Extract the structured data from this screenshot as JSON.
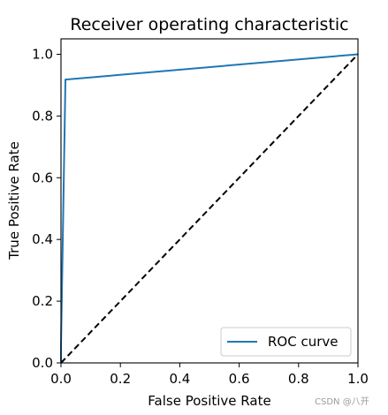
{
  "chart_data": {
    "type": "line",
    "title": "Receiver operating characteristic",
    "xlabel": "False Positive Rate",
    "ylabel": "True Positive Rate",
    "xlim": [
      0.0,
      1.0
    ],
    "ylim": [
      0.0,
      1.05
    ],
    "xticks": [
      "0.0",
      "0.2",
      "0.4",
      "0.6",
      "0.8",
      "1.0"
    ],
    "yticks": [
      "0.0",
      "0.2",
      "0.4",
      "0.6",
      "0.8",
      "1.0"
    ],
    "grid": false,
    "legend_position": "lower-right",
    "series": [
      {
        "name": "ROC curve",
        "color": "#1f77b4",
        "style": "solid",
        "x": [
          0.0,
          0.0,
          0.015,
          1.0
        ],
        "y": [
          0.0,
          0.05,
          0.918,
          1.0
        ]
      },
      {
        "color": "#000000",
        "style": "dashed",
        "x": [
          0.0,
          1.0
        ],
        "y": [
          0.0,
          1.0
        ]
      }
    ]
  },
  "watermark": "CSDN @八开"
}
